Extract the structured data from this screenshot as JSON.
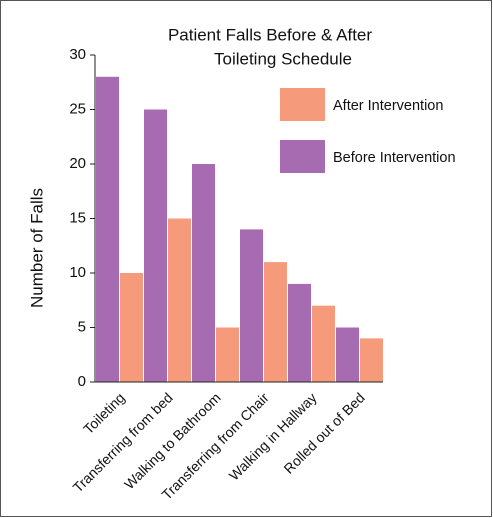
{
  "chart_data": {
    "type": "bar",
    "title": [
      "Patient Falls Before & After",
      "Toileting Schedule"
    ],
    "y_label": "Number of Falls",
    "categories": [
      "Toileting",
      "Transferring from bed",
      "Walking to Bathroom",
      "Transferring from Chair",
      "Walking in Hallway",
      "Rolled out of Bed"
    ],
    "series": [
      {
        "name": "Before Intervention",
        "color": "#a66bb0",
        "values": [
          28,
          25,
          20,
          14,
          9,
          5
        ]
      },
      {
        "name": "After Intervention",
        "color": "#f59a7a",
        "values": [
          10,
          15,
          5,
          11,
          7,
          4
        ]
      }
    ],
    "ylim": [
      0,
      30
    ],
    "yticks": [
      0,
      5,
      10,
      15,
      20,
      25,
      30
    ],
    "legend": "upper right"
  }
}
